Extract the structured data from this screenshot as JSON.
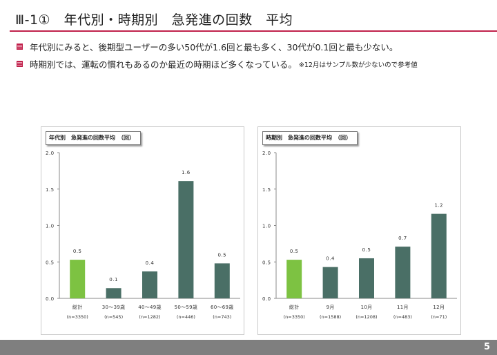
{
  "slide": {
    "title": "Ⅲ-1①　年代別・時期別　急発進の回数　平均",
    "bullets": [
      {
        "text": "年代別にみると、後期型ユーザーの多い50代が1.6回と最も多く、30代が0.1回と最も少ない。",
        "note": ""
      },
      {
        "text": "時期別では、運転の慣れもあるのか最近の時期ほど多くなっている。",
        "note": "※12月はサンプル数が少ないので参考値"
      }
    ],
    "page_number": "5"
  },
  "colors": {
    "accent": "#c0204a",
    "bar_total": "#7dc242",
    "bar_other": "#4a6f66",
    "footer": "#7f7f7f"
  },
  "chart_data": [
    {
      "type": "bar",
      "title": "年代別　急発進の回数平均　（回）",
      "categories": [
        "総計",
        "30～39歳",
        "40～49歳",
        "50～59歳",
        "60～69歳"
      ],
      "sample_sizes": [
        "(n=3350)",
        "(n=545)",
        "(n=1282)",
        "(n=446)",
        "(n=743)"
      ],
      "values": [
        0.53,
        0.14,
        0.37,
        1.61,
        0.48
      ],
      "value_labels": [
        "0.5",
        "0.1",
        "0.4",
        "1.6",
        "0.5"
      ],
      "yticks": [
        "0.0",
        "0.5",
        "1.0",
        "1.5",
        "2.0"
      ],
      "ylim": [
        0,
        2.0
      ],
      "highlight_index": 0
    },
    {
      "type": "bar",
      "title": "時期別　急発進の回数平均　（回）",
      "categories": [
        "総計",
        "9月",
        "10月",
        "11月",
        "12月"
      ],
      "sample_sizes": [
        "(n=3350)",
        "(n=1588)",
        "(n=1208)",
        "(n=483)",
        "(n=71)"
      ],
      "values": [
        0.53,
        0.43,
        0.55,
        0.71,
        1.16
      ],
      "value_labels": [
        "0.5",
        "0.4",
        "0.5",
        "0.7",
        "1.2"
      ],
      "yticks": [
        "0.0",
        "0.5",
        "1.0",
        "1.5",
        "2.0"
      ],
      "ylim": [
        0,
        2.0
      ],
      "highlight_index": 0
    }
  ]
}
